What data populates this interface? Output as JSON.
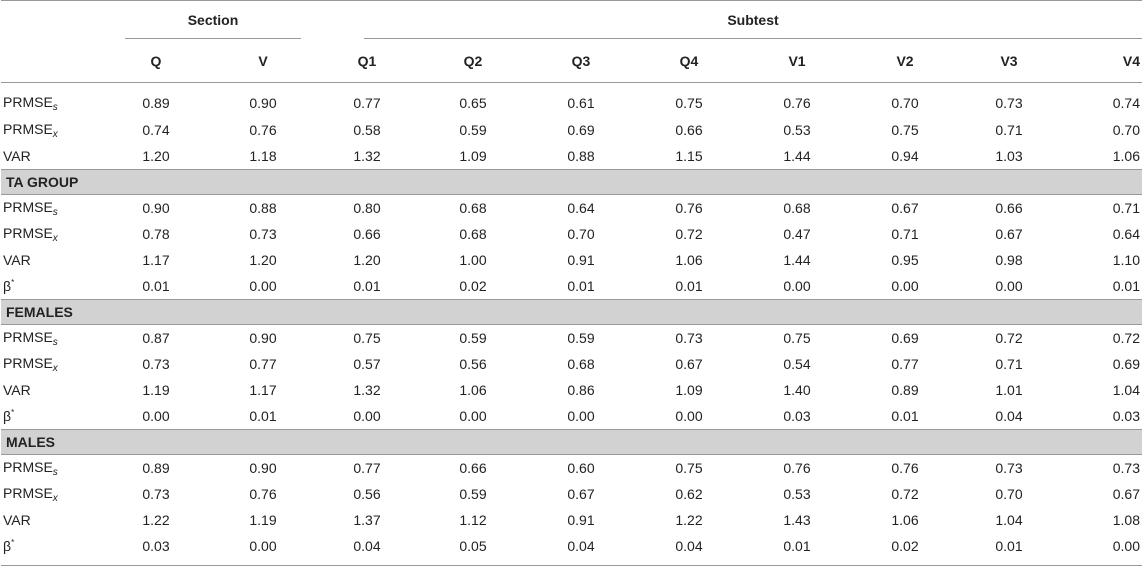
{
  "headers": {
    "section_group": "Section",
    "subtest_group": "Subtest",
    "columns": [
      "Q",
      "V",
      "Q1",
      "Q2",
      "Q3",
      "Q4",
      "V1",
      "V2",
      "V3",
      "V4"
    ]
  },
  "labels": {
    "prmse_base": "PRMSE",
    "sub_s": "s",
    "sub_x": "x",
    "var": "VAR",
    "beta": "β",
    "beta_sup": "*"
  },
  "groups": [
    {
      "name": "",
      "rows": [
        [
          "0.89",
          "0.90",
          "0.77",
          "0.65",
          "0.61",
          "0.75",
          "0.76",
          "0.70",
          "0.73",
          "0.74"
        ],
        [
          "0.74",
          "0.76",
          "0.58",
          "0.59",
          "0.69",
          "0.66",
          "0.53",
          "0.75",
          "0.71",
          "0.70"
        ],
        [
          "1.20",
          "1.18",
          "1.32",
          "1.09",
          "0.88",
          "1.15",
          "1.44",
          "0.94",
          "1.03",
          "1.06"
        ]
      ]
    },
    {
      "name": "TA GROUP",
      "rows": [
        [
          "0.90",
          "0.88",
          "0.80",
          "0.68",
          "0.64",
          "0.76",
          "0.68",
          "0.67",
          "0.66",
          "0.71"
        ],
        [
          "0.78",
          "0.73",
          "0.66",
          "0.68",
          "0.70",
          "0.72",
          "0.47",
          "0.71",
          "0.67",
          "0.64"
        ],
        [
          "1.17",
          "1.20",
          "1.20",
          "1.00",
          "0.91",
          "1.06",
          "1.44",
          "0.95",
          "0.98",
          "1.10"
        ],
        [
          "0.01",
          "0.00",
          "0.01",
          "0.02",
          "0.01",
          "0.01",
          "0.00",
          "0.00",
          "0.00",
          "0.01"
        ]
      ]
    },
    {
      "name": "FEMALES",
      "rows": [
        [
          "0.87",
          "0.90",
          "0.75",
          "0.59",
          "0.59",
          "0.73",
          "0.75",
          "0.69",
          "0.72",
          "0.72"
        ],
        [
          "0.73",
          "0.77",
          "0.57",
          "0.56",
          "0.68",
          "0.67",
          "0.54",
          "0.77",
          "0.71",
          "0.69"
        ],
        [
          "1.19",
          "1.17",
          "1.32",
          "1.06",
          "0.86",
          "1.09",
          "1.40",
          "0.89",
          "1.01",
          "1.04"
        ],
        [
          "0.00",
          "0.01",
          "0.00",
          "0.00",
          "0.00",
          "0.00",
          "0.03",
          "0.01",
          "0.04",
          "0.03"
        ]
      ]
    },
    {
      "name": "MALES",
      "rows": [
        [
          "0.89",
          "0.90",
          "0.77",
          "0.66",
          "0.60",
          "0.75",
          "0.76",
          "0.76",
          "0.73",
          "0.73"
        ],
        [
          "0.73",
          "0.76",
          "0.56",
          "0.59",
          "0.67",
          "0.62",
          "0.53",
          "0.72",
          "0.70",
          "0.67"
        ],
        [
          "1.22",
          "1.19",
          "1.37",
          "1.12",
          "0.91",
          "1.22",
          "1.43",
          "1.06",
          "1.04",
          "1.08"
        ],
        [
          "0.03",
          "0.00",
          "0.04",
          "0.05",
          "0.04",
          "0.04",
          "0.01",
          "0.02",
          "0.01",
          "0.00"
        ]
      ]
    }
  ]
}
